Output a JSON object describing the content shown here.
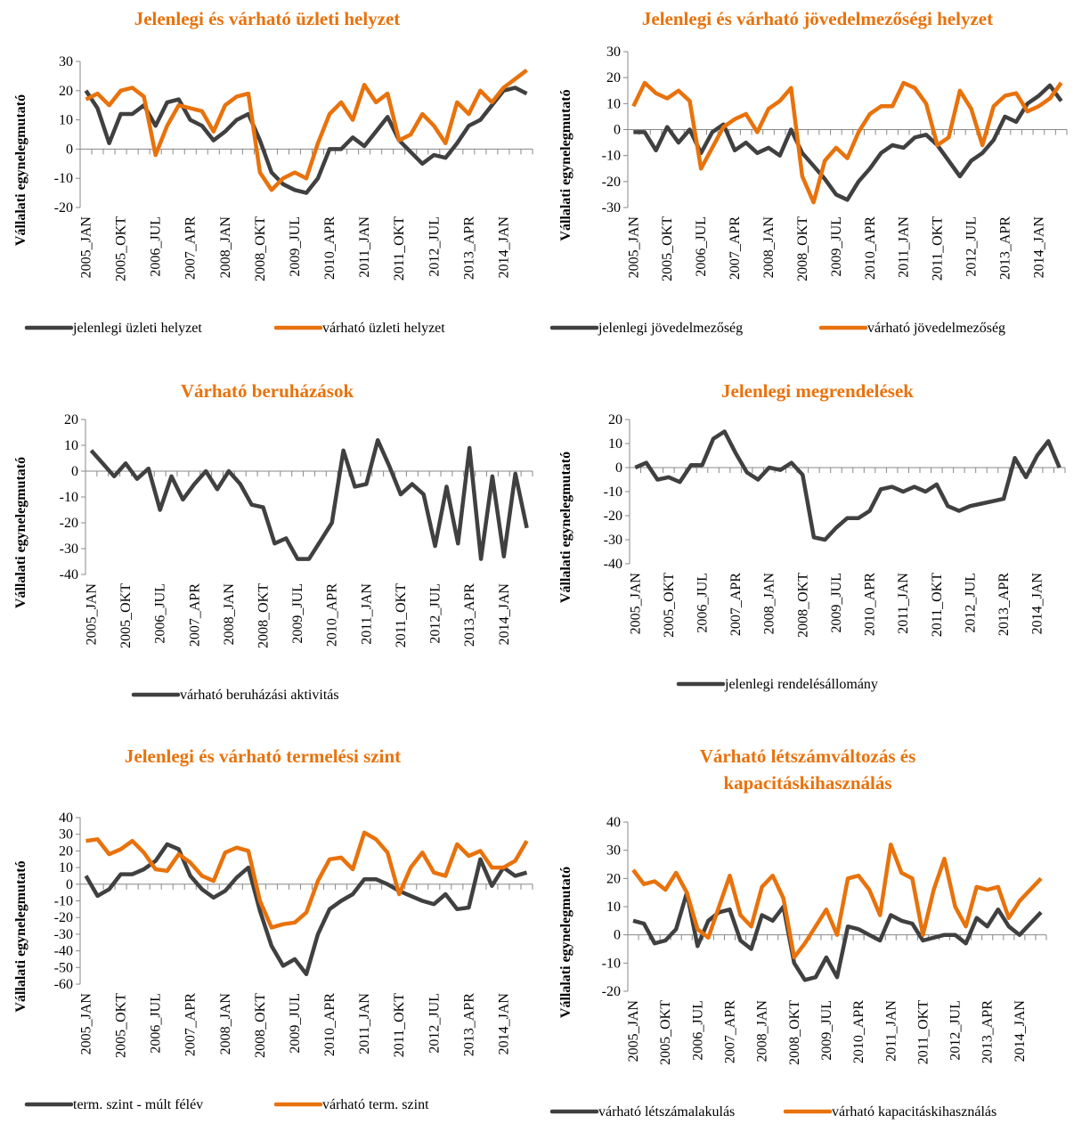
{
  "chart_data": [
    {
      "type": "line",
      "title": "Jelenlegi és várható üzleti helyzet",
      "ylabel": "Vállalati egynelegmutató",
      "categories": [
        "2005_JAN",
        null,
        null,
        "2005_OKT",
        null,
        null,
        "2006_JUL",
        null,
        null,
        "2007_APR",
        null,
        null,
        "2008_JAN",
        null,
        null,
        "2008_OKT",
        null,
        null,
        "2009_JUL",
        null,
        null,
        "2010_APR",
        null,
        null,
        "2011_JAN",
        null,
        null,
        "2011_OKT",
        null,
        null,
        "2012_JUL",
        null,
        null,
        "2013_APR",
        null,
        null,
        "2014_JAN",
        null,
        null
      ],
      "series": [
        {
          "name": "jelenlegi üzleti helyzet",
          "color": "#404040",
          "values": [
            20,
            14,
            2,
            12,
            12,
            15,
            8,
            16,
            17,
            10,
            8,
            3,
            6,
            10,
            12,
            3,
            -8,
            -12,
            -14,
            -15,
            -10,
            0,
            0,
            4,
            1,
            6,
            11,
            3,
            -1,
            -5,
            -2,
            -3,
            2,
            8,
            10,
            15,
            20,
            21,
            19
          ]
        },
        {
          "name": "várható üzleti helyzet",
          "color": "#e8720c",
          "values": [
            17,
            19,
            15,
            20,
            21,
            18,
            -2,
            8,
            15,
            14,
            13,
            6,
            15,
            18,
            19,
            -8,
            -14,
            -10,
            -8,
            -10,
            2,
            12,
            16,
            10,
            22,
            16,
            19,
            3,
            5,
            12,
            8,
            2,
            16,
            12,
            20,
            16,
            21,
            24,
            27
          ]
        }
      ],
      "ylim": [
        -20,
        30
      ],
      "yticks": [
        -20,
        -10,
        0,
        10,
        20,
        30
      ]
    },
    {
      "type": "line",
      "title": "Jelenlegi és várható jövedelmezőségi helyzet",
      "ylabel": "Vállalati egynelegmutató",
      "categories": [
        "2005_JAN",
        null,
        null,
        "2005_OKT",
        null,
        null,
        "2006_JUL",
        null,
        null,
        "2007_APR",
        null,
        null,
        "2008_JAN",
        null,
        null,
        "2008_OKT",
        null,
        null,
        "2009_JUL",
        null,
        null,
        "2010_APR",
        null,
        null,
        "2011_JAN",
        null,
        null,
        "2011_OKT",
        null,
        null,
        "2012_JUL",
        null,
        null,
        "2013_APR",
        null,
        null,
        "2014_JAN",
        null,
        null
      ],
      "series": [
        {
          "name": "jelenlegi jövedelmezőség",
          "color": "#404040",
          "values": [
            -1,
            -1,
            -8,
            1,
            -5,
            0,
            -9,
            -1,
            2,
            -8,
            -5,
            -9,
            -7,
            -10,
            0,
            -9,
            -14,
            -19,
            -25,
            -27,
            -20,
            -15,
            -9,
            -6,
            -7,
            -3,
            -2,
            -6,
            -12,
            -18,
            -12,
            -9,
            -4,
            5,
            3,
            10,
            13,
            17,
            11
          ]
        },
        {
          "name": "várható jövedelmezőség",
          "color": "#e8720c",
          "values": [
            9,
            18,
            14,
            12,
            15,
            11,
            -15,
            -7,
            1,
            4,
            6,
            -1,
            8,
            11,
            16,
            -18,
            -28,
            -12,
            -7,
            -11,
            -1,
            6,
            9,
            9,
            18,
            16,
            10,
            -6,
            -3,
            15,
            8,
            -6,
            9,
            13,
            14,
            7,
            9,
            12,
            18
          ]
        }
      ],
      "ylim": [
        -30,
        30
      ],
      "yticks": [
        -30,
        -20,
        -10,
        0,
        10,
        20,
        30
      ]
    },
    {
      "type": "line",
      "title": "Várható beruházások",
      "ylabel": "Vállalati egynelegmutató",
      "categories": [
        "2005_JAN",
        null,
        null,
        "2005_OKT",
        null,
        null,
        "2006_JUL",
        null,
        null,
        "2007_APR",
        null,
        null,
        "2008_JAN",
        null,
        null,
        "2008_OKT",
        null,
        null,
        "2009_JUL",
        null,
        null,
        "2010_APR",
        null,
        null,
        "2011_JAN",
        null,
        null,
        "2011_OKT",
        null,
        null,
        "2012_JUL",
        null,
        null,
        "2013_APR",
        null,
        null,
        "2014_JAN",
        null,
        null
      ],
      "series": [
        {
          "name": "várható beruházási aktivitás",
          "color": "#404040",
          "values": [
            8,
            3,
            -2,
            3,
            -3,
            1,
            -15,
            -2,
            -11,
            -5,
            0,
            -7,
            0,
            -5,
            -13,
            -14,
            -28,
            -26,
            -34,
            -34,
            -27,
            -20,
            8,
            -6,
            -5,
            12,
            2,
            -9,
            -5,
            -9,
            -29,
            -6,
            -28,
            9,
            -34,
            -2,
            -33,
            -1,
            -22
          ]
        }
      ],
      "ylim": [
        -40,
        20
      ],
      "yticks": [
        -40,
        -30,
        -20,
        -10,
        0,
        10,
        20
      ]
    },
    {
      "type": "line",
      "title": "Jelenlegi megrendelések",
      "ylabel": "Vállalati egynelegmutató",
      "categories": [
        "2005_JAN",
        null,
        null,
        "2005_OKT",
        null,
        null,
        "2006_JUL",
        null,
        null,
        "2007_APR",
        null,
        null,
        "2008_JAN",
        null,
        null,
        "2008_OKT",
        null,
        null,
        "2009_JUL",
        null,
        null,
        "2010_APR",
        null,
        null,
        "2011_JAN",
        null,
        null,
        "2011_OKT",
        null,
        null,
        "2012_JUL",
        null,
        null,
        "2013_APR",
        null,
        null,
        "2014_JAN",
        null,
        null
      ],
      "series": [
        {
          "name": "jelenlegi rendelésállomány",
          "color": "#404040",
          "values": [
            0,
            2,
            -5,
            -4,
            -6,
            1,
            1,
            12,
            15,
            6,
            -2,
            -5,
            0,
            -1,
            2,
            -3,
            -29,
            -30,
            -25,
            -21,
            -21,
            -18,
            -9,
            -8,
            -10,
            -8,
            -10,
            -7,
            -16,
            -18,
            -16,
            -15,
            -14,
            -13,
            4,
            -4,
            5,
            11,
            0
          ]
        }
      ],
      "ylim": [
        -40,
        20
      ],
      "yticks": [
        -40,
        -30,
        -20,
        -10,
        0,
        10,
        20
      ]
    },
    {
      "type": "line",
      "title": "Jelenlegi és várható termelési szint",
      "ylabel": "Vállalati egynelegmutató",
      "categories": [
        "2005_JAN",
        null,
        null,
        "2005_OKT",
        null,
        null,
        "2006_JUL",
        null,
        null,
        "2007_APR",
        null,
        null,
        "2008_JAN",
        null,
        null,
        "2008_OKT",
        null,
        null,
        "2009_JUL",
        null,
        null,
        "2010_APR",
        null,
        null,
        "2011_JAN",
        null,
        null,
        "2011_OKT",
        null,
        null,
        "2012_JUL",
        null,
        null,
        "2013_APR",
        null,
        null,
        "2014_JAN",
        null,
        null
      ],
      "series": [
        {
          "name": "term. szint - múlt félév",
          "color": "#404040",
          "values": [
            5,
            -7,
            -3,
            6,
            6,
            9,
            14,
            24,
            21,
            5,
            -3,
            -8,
            -4,
            4,
            10,
            -16,
            -37,
            -49,
            -45,
            -54,
            -30,
            -15,
            -10,
            -6,
            3,
            3,
            0,
            -4,
            -7,
            -10,
            -12,
            -6,
            -15,
            -14,
            15,
            -1,
            10,
            5,
            7
          ]
        },
        {
          "name": "várható term. szint",
          "color": "#e8720c",
          "values": [
            26,
            27,
            18,
            21,
            26,
            19,
            9,
            8,
            18,
            13,
            5,
            2,
            19,
            22,
            20,
            -10,
            -26,
            -24,
            -23,
            -17,
            2,
            15,
            16,
            9,
            31,
            27,
            19,
            -6,
            10,
            19,
            7,
            5,
            24,
            17,
            20,
            10,
            10,
            14,
            26
          ]
        }
      ],
      "ylim": [
        -60,
        40
      ],
      "yticks": [
        -60,
        -50,
        -40,
        -30,
        -20,
        -10,
        0,
        10,
        20,
        30,
        40
      ]
    },
    {
      "type": "line",
      "title": "Várható létszámváltozás és kapacitáskihasználás",
      "ylabel": "Vállalati egynelegmutató",
      "categories": [
        "2005_JAN",
        null,
        null,
        "2005_OKT",
        null,
        null,
        "2006_JUL",
        null,
        null,
        "2007_APR",
        null,
        null,
        "2008_JAN",
        null,
        null,
        "2008_OKT",
        null,
        null,
        "2009_JUL",
        null,
        null,
        "2010_APR",
        null,
        null,
        "2011_JAN",
        null,
        null,
        "2011_OKT",
        null,
        null,
        "2012_JUL",
        null,
        null,
        "2013_APR",
        null,
        null,
        "2014_JAN",
        null,
        null
      ],
      "series": [
        {
          "name": "várható létszámalakulás",
          "color": "#404040",
          "values": [
            5,
            4,
            -3,
            -2,
            2,
            15,
            -4,
            5,
            8,
            9,
            -2,
            -5,
            7,
            5,
            10,
            -10,
            -16,
            -15,
            -8,
            -15,
            3,
            2,
            0,
            -2,
            7,
            5,
            4,
            -2,
            -1,
            0,
            0,
            -3,
            6,
            3,
            9,
            3,
            0,
            4,
            8
          ]
        },
        {
          "name": "várható kapacitáskihasználás",
          "color": "#e8720c",
          "values": [
            23,
            18,
            19,
            16,
            22,
            15,
            2,
            -1,
            10,
            21,
            7,
            3,
            17,
            21,
            13,
            -8,
            -3,
            3,
            9,
            0,
            20,
            21,
            16,
            7,
            32,
            22,
            20,
            0,
            16,
            27,
            10,
            3,
            17,
            16,
            17,
            6,
            12,
            16,
            20
          ]
        }
      ],
      "ylim": [
        -20,
        40
      ],
      "yticks": [
        -20,
        -10,
        0,
        10,
        20,
        30,
        40
      ]
    }
  ]
}
